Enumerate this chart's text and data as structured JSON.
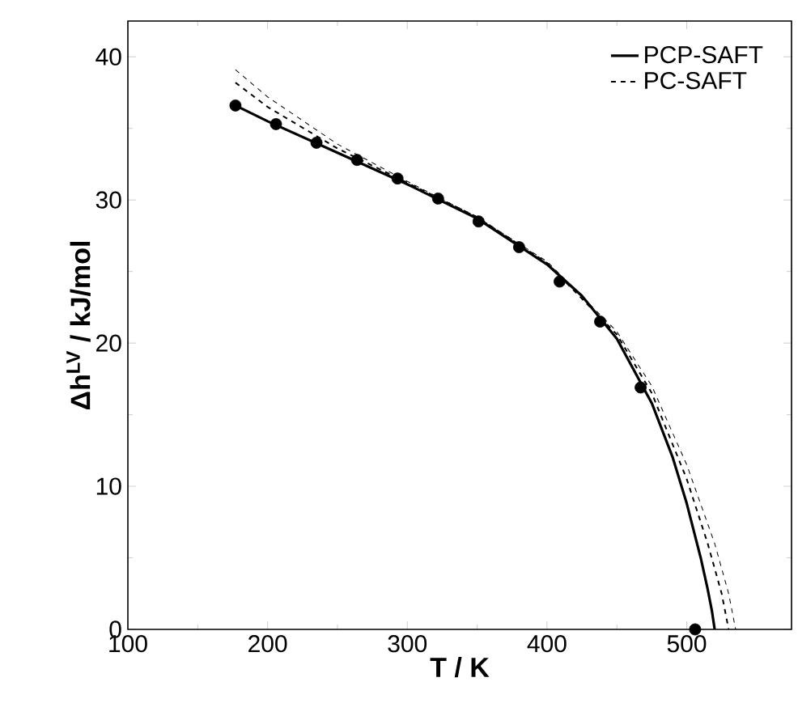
{
  "chart_data": {
    "type": "line",
    "xlabel": "T / K",
    "ylabel": "Δh$^{LV}$ / kJ/mol",
    "xlim": [
      100,
      575
    ],
    "ylim": [
      0,
      42.5
    ],
    "xticks": [
      100,
      200,
      300,
      400,
      500
    ],
    "yticks": [
      0,
      10,
      20,
      30,
      40
    ],
    "legend": "top right",
    "grid": false,
    "series": [
      {
        "name": "PCP-SAFT",
        "color": "#000000",
        "line_style": "solid",
        "marker": "none",
        "x": [
          177,
          200,
          250,
          300,
          350,
          400,
          425,
          450,
          475,
          490,
          500,
          510,
          515,
          518,
          520
        ],
        "values": [
          36.6,
          35.5,
          33.3,
          31.1,
          28.7,
          25.5,
          23.3,
          20.3,
          15.8,
          12.0,
          8.8,
          5.0,
          2.8,
          1.3,
          0
        ]
      },
      {
        "name": "PC-SAFT",
        "color": "#000000",
        "line_style": "dashed",
        "marker": "none",
        "x": [
          177,
          200,
          250,
          300,
          350,
          400,
          450,
          475,
          500,
          515,
          525,
          530
        ],
        "values": [
          38.2,
          36.5,
          33.6,
          31.2,
          28.8,
          25.6,
          20.6,
          16.5,
          10.5,
          6.0,
          2.5,
          0
        ]
      },
      {
        "color": "#000000",
        "line_style": "dashed",
        "marker": "none",
        "x": [
          177,
          200,
          250,
          300,
          350,
          400,
          450,
          475,
          500,
          520,
          530,
          535
        ],
        "values": [
          39.1,
          37.2,
          33.9,
          31.3,
          28.8,
          25.7,
          20.8,
          17.0,
          11.5,
          6.0,
          2.5,
          0
        ]
      },
      {
        "type": "scatter",
        "color": "#000000",
        "marker": "circle",
        "x": [
          177,
          206,
          235,
          264,
          293,
          322,
          351,
          380,
          409,
          438,
          467,
          506
        ],
        "values": [
          36.6,
          35.3,
          34.0,
          32.8,
          31.5,
          30.1,
          28.5,
          26.7,
          24.3,
          21.5,
          16.9,
          0
        ]
      }
    ]
  }
}
